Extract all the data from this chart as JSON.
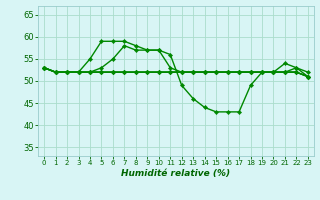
{
  "x": [
    0,
    1,
    2,
    3,
    4,
    5,
    6,
    7,
    8,
    9,
    10,
    11,
    12,
    13,
    14,
    15,
    16,
    17,
    18,
    19,
    20,
    21,
    22,
    23
  ],
  "line1": [
    53,
    52,
    52,
    52,
    55,
    59,
    59,
    59,
    58,
    57,
    57,
    56,
    49,
    46,
    44,
    43,
    43,
    43,
    49,
    52,
    52,
    54,
    53,
    52
  ],
  "line2": [
    53,
    52,
    52,
    52,
    52,
    53,
    55,
    58,
    57,
    57,
    57,
    53,
    52,
    52,
    52,
    52,
    52,
    52,
    52,
    52,
    52,
    52,
    53,
    51
  ],
  "line3": [
    53,
    52,
    52,
    52,
    52,
    52,
    52,
    52,
    52,
    52,
    52,
    52,
    52,
    52,
    52,
    52,
    52,
    52,
    52,
    52,
    52,
    52,
    52,
    51
  ],
  "line4": [
    53,
    52,
    52,
    52,
    52,
    52,
    52,
    52,
    52,
    52,
    52,
    52,
    52,
    52,
    52,
    52,
    52,
    52,
    52,
    52,
    52,
    52,
    52,
    51
  ],
  "line5": [
    53,
    52,
    52,
    52,
    52,
    52,
    52,
    52,
    52,
    52,
    52,
    52,
    52,
    52,
    52,
    52,
    52,
    52,
    52,
    52,
    52,
    52,
    52,
    51
  ],
  "line_color": "#008800",
  "bg_color": "#d8f5f5",
  "grid_color": "#aaddcc",
  "xlabel": "Humidité relative (%)",
  "ylim": [
    33,
    67
  ],
  "yticks": [
    35,
    40,
    45,
    50,
    55,
    60,
    65
  ],
  "xticks": [
    0,
    1,
    2,
    3,
    4,
    5,
    6,
    7,
    8,
    9,
    10,
    11,
    12,
    13,
    14,
    15,
    16,
    17,
    18,
    19,
    20,
    21,
    22,
    23
  ],
  "marker": "D",
  "markersize": 2.2,
  "linewidth": 1.0
}
